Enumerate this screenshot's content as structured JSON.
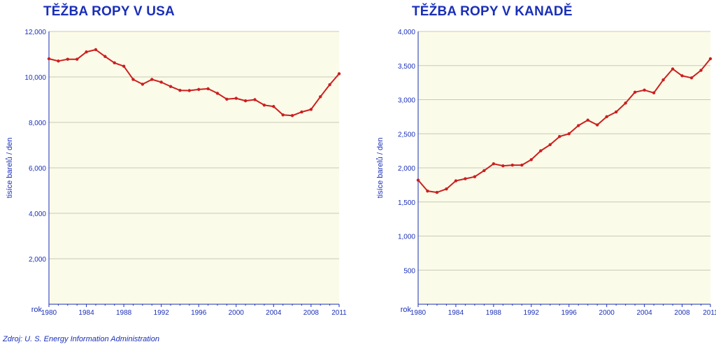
{
  "source": "Zdroj: U. S. Energy Information Administration",
  "chart_data": [
    {
      "type": "line",
      "title": "TĚŽBA ROPY V USA",
      "xlabel": "rok",
      "ylabel": "tisíce barelů / den",
      "ylim": [
        0,
        12000
      ],
      "yticks": [
        2000,
        4000,
        6000,
        8000,
        10000,
        12000
      ],
      "ytick_labels": [
        "2,000",
        "4,000",
        "6,000",
        "8,000",
        "10,000",
        "12,000"
      ],
      "xticks": [
        1980,
        1984,
        1988,
        1992,
        1996,
        2000,
        2004,
        2008,
        2011
      ],
      "xtick_labels": [
        "1980",
        "1984",
        "1988",
        "1992",
        "1996",
        "2000",
        "2004",
        "2008",
        "2011"
      ],
      "x": [
        1980,
        1981,
        1982,
        1983,
        1984,
        1985,
        1986,
        1987,
        1988,
        1989,
        1990,
        1991,
        1992,
        1993,
        1994,
        1995,
        1996,
        1997,
        1998,
        1999,
        2000,
        2001,
        2002,
        2003,
        2004,
        2005,
        2006,
        2007,
        2008,
        2009,
        2010,
        2011
      ],
      "values": [
        10800,
        10700,
        10780,
        10780,
        11100,
        11200,
        10900,
        10620,
        10470,
        9890,
        9680,
        9890,
        9770,
        9580,
        9410,
        9400,
        9450,
        9480,
        9280,
        9020,
        9060,
        8950,
        9000,
        8760,
        8700,
        8330,
        8300,
        8460,
        8570,
        9130,
        9660,
        10140
      ],
      "grid": true,
      "color": "#cc1f1f"
    },
    {
      "type": "line",
      "title": "TĚŽBA ROPY V KANADĚ",
      "xlabel": "rok",
      "ylabel": "tisíce barelů / den",
      "ylim": [
        0,
        4000
      ],
      "yticks": [
        500,
        1000,
        1500,
        2000,
        2500,
        3000,
        3500,
        4000
      ],
      "ytick_labels": [
        "500",
        "1,000",
        "1,500",
        "2,000",
        "2,500",
        "3,000",
        "3,500",
        "4,000"
      ],
      "xticks": [
        1980,
        1984,
        1988,
        1992,
        1996,
        2000,
        2004,
        2008,
        2011
      ],
      "xtick_labels": [
        "1980",
        "1984",
        "1988",
        "1992",
        "1996",
        "2000",
        "2004",
        "2008",
        "2011"
      ],
      "x": [
        1980,
        1981,
        1982,
        1983,
        1984,
        1985,
        1986,
        1987,
        1988,
        1989,
        1990,
        1991,
        1992,
        1993,
        1994,
        1995,
        1996,
        1997,
        1998,
        1999,
        2000,
        2001,
        2002,
        2003,
        2004,
        2005,
        2006,
        2007,
        2008,
        2009,
        2010,
        2011
      ],
      "values": [
        1820,
        1660,
        1640,
        1690,
        1810,
        1840,
        1870,
        1960,
        2060,
        2030,
        2040,
        2040,
        2120,
        2250,
        2340,
        2460,
        2500,
        2620,
        2700,
        2630,
        2750,
        2820,
        2950,
        3110,
        3140,
        3100,
        3290,
        3450,
        3350,
        3320,
        3430,
        3600
      ],
      "grid": true,
      "color": "#cc1f1f"
    }
  ]
}
